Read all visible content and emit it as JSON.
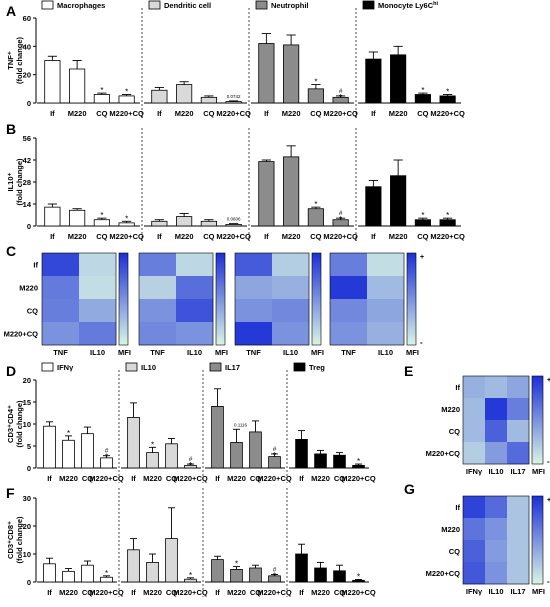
{
  "colors": {
    "white": "#ffffff",
    "light": "#d9d9d9",
    "mid": "#8c8c8c",
    "black": "#000000",
    "heat_low": "#d9f5e6",
    "heat_high": "#1c2fd6"
  },
  "chart_data": [
    {
      "id": "A",
      "type": "bar",
      "panel_label": "A",
      "ylabel": "TNF⁺",
      "ylabel2": "(fold change)",
      "ylim": [
        0,
        60
      ],
      "yticks": [
        0,
        20,
        40,
        60
      ],
      "groups": [
        {
          "legend": "Macrophages",
          "legend_sup": "",
          "fill": "white",
          "categories": [
            "If",
            "M220",
            "CQ",
            "M220+CQ"
          ],
          "values": [
            30,
            24,
            6,
            5
          ],
          "errors": [
            3,
            6,
            1,
            1
          ],
          "marks": [
            "",
            "",
            "*",
            "*"
          ],
          "annotation": ""
        },
        {
          "legend": "Dendritic cell",
          "legend_sup": "",
          "fill": "light",
          "categories": [
            "If",
            "M220",
            "CQ",
            "M220+CQ"
          ],
          "values": [
            9,
            13,
            4,
            1
          ],
          "errors": [
            2,
            2,
            1,
            0.5
          ],
          "marks": [
            "",
            "",
            "",
            ""
          ],
          "annotation": "0.0742"
        },
        {
          "legend": "Neutrophil",
          "legend_sup": "",
          "fill": "mid",
          "categories": [
            "If",
            "M220",
            "CQ",
            "M220+CQ"
          ],
          "values": [
            42,
            41,
            10,
            4
          ],
          "errors": [
            7,
            7,
            3,
            1
          ],
          "marks": [
            "",
            "",
            "*",
            "*#"
          ],
          "annotation": ""
        },
        {
          "legend": "Monocyte Ly6C",
          "legend_sup": "hi",
          "fill": "black",
          "categories": [
            "If",
            "M220",
            "CQ",
            "M220+CQ"
          ],
          "values": [
            31,
            34,
            6,
            5
          ],
          "errors": [
            5,
            6,
            1,
            1
          ],
          "marks": [
            "",
            "",
            "*",
            "*"
          ],
          "annotation": ""
        }
      ]
    },
    {
      "id": "B",
      "type": "bar",
      "panel_label": "B",
      "ylabel": "IL10⁺",
      "ylabel2": "(fold change)",
      "ylim": [
        0,
        56
      ],
      "yticks": [
        0,
        14,
        28,
        42,
        56
      ],
      "groups": [
        {
          "legend": "",
          "legend_sup": "",
          "fill": "white",
          "categories": [
            "If",
            "M220",
            "CQ",
            "M220+CQ"
          ],
          "values": [
            12,
            10,
            4,
            2
          ],
          "errors": [
            2,
            1,
            1,
            1
          ],
          "marks": [
            "",
            "",
            "*",
            "*"
          ],
          "annotation": ""
        },
        {
          "legend": "",
          "legend_sup": "",
          "fill": "light",
          "categories": [
            "If",
            "M220",
            "CQ",
            "M220+CQ"
          ],
          "values": [
            3,
            6,
            3,
            1
          ],
          "errors": [
            1,
            2,
            1,
            0.5
          ],
          "marks": [
            "",
            "",
            "",
            ""
          ],
          "annotation": "0.0606"
        },
        {
          "legend": "",
          "legend_sup": "",
          "fill": "mid",
          "categories": [
            "If",
            "M220",
            "CQ",
            "M220+CQ"
          ],
          "values": [
            41,
            44,
            11,
            4
          ],
          "errors": [
            1,
            7,
            1,
            1
          ],
          "marks": [
            "",
            "",
            "*",
            "*#"
          ],
          "annotation": ""
        },
        {
          "legend": "",
          "legend_sup": "",
          "fill": "black",
          "categories": [
            "If",
            "M220",
            "CQ",
            "M220+CQ"
          ],
          "values": [
            25,
            32,
            4,
            4
          ],
          "errors": [
            4,
            10,
            1,
            1
          ],
          "marks": [
            "",
            "",
            "*",
            "*"
          ],
          "annotation": ""
        }
      ]
    },
    {
      "id": "C",
      "type": "heatmap",
      "panel_label": "C",
      "rows": [
        "If",
        "M220",
        "CQ",
        "M220+CQ"
      ],
      "columns": [
        "TNF",
        "IL10"
      ],
      "scale_label": "MFI",
      "scale_plus": "+",
      "scale_minus": "-",
      "blocks": [
        [
          [
            0.88,
            0.15
          ],
          [
            0.62,
            0.12
          ],
          [
            0.6,
            0.38
          ],
          [
            0.5,
            0.62
          ]
        ],
        [
          [
            0.6,
            0.15
          ],
          [
            0.18,
            0.68
          ],
          [
            0.5,
            0.82
          ],
          [
            0.55,
            0.5
          ]
        ],
        [
          [
            0.78,
            0.2
          ],
          [
            0.4,
            0.35
          ],
          [
            0.5,
            0.55
          ],
          [
            0.95,
            0.5
          ]
        ],
        [
          [
            0.6,
            0.12
          ],
          [
            0.95,
            0.3
          ],
          [
            0.55,
            0.4
          ],
          [
            0.5,
            0.35
          ]
        ]
      ]
    },
    {
      "id": "D",
      "type": "bar",
      "panel_label": "D",
      "ylabel": "CD3⁺CD4⁺",
      "ylabel2": "(fold change)",
      "ylim": [
        0,
        20
      ],
      "yticks": [
        0,
        5,
        10,
        15,
        20
      ],
      "groups": [
        {
          "legend": "IFNγ",
          "legend_sup": "",
          "fill": "white",
          "categories": [
            "If",
            "M220",
            "CQ",
            "M220+CQ"
          ],
          "values": [
            9.5,
            6.3,
            7.8,
            2.3
          ],
          "errors": [
            1,
            1,
            1.5,
            0.5
          ],
          "marks": [
            "",
            "*",
            "",
            "*#"
          ],
          "annotation": ""
        },
        {
          "legend": "IL10",
          "legend_sup": "",
          "fill": "light",
          "categories": [
            "If",
            "M220",
            "CQ",
            "M220+CQ"
          ],
          "values": [
            11.5,
            3.5,
            5.5,
            0.6
          ],
          "errors": [
            3.3,
            1.2,
            1.2,
            0.3
          ],
          "marks": [
            "",
            "*",
            "",
            "*#"
          ],
          "annotation": ""
        },
        {
          "legend": "IL17",
          "legend_sup": "",
          "fill": "mid",
          "categories": [
            "If",
            "M220",
            "CQ",
            "M220+CQ"
          ],
          "values": [
            14,
            5.8,
            8.2,
            2.6
          ],
          "errors": [
            4,
            3,
            2.5,
            0.6
          ],
          "marks": [
            "",
            "",
            "",
            "*#"
          ],
          "annotation": "0.1116"
        },
        {
          "legend": "Treg",
          "legend_sup": "",
          "fill": "black",
          "categories": [
            "If",
            "M220",
            "CQ",
            "M220+CQ"
          ],
          "values": [
            6.5,
            3.2,
            2.9,
            0.6
          ],
          "errors": [
            2,
            0.8,
            0.6,
            0.3
          ],
          "marks": [
            "",
            "",
            "",
            "*"
          ],
          "annotation": ""
        }
      ]
    },
    {
      "id": "E",
      "type": "heatmap",
      "panel_label": "E",
      "rows": [
        "If",
        "M220",
        "CQ",
        "M220+CQ"
      ],
      "columns": [
        "IFNγ",
        "IL10",
        "IL17"
      ],
      "scale_label": "MFI",
      "scale_plus": "+",
      "scale_minus": "-",
      "blocks": [
        [
          [
            0.35,
            0.3,
            0.4
          ],
          [
            0.3,
            0.95,
            0.6
          ],
          [
            0.3,
            0.75,
            0.3
          ],
          [
            0.2,
            0.45,
            0.7
          ]
        ]
      ]
    },
    {
      "id": "F",
      "type": "bar",
      "panel_label": "F",
      "ylabel": "CD3⁺CD8⁺",
      "ylabel2": "(fold change)",
      "ylim": [
        0,
        30
      ],
      "yticks": [
        0,
        10,
        20,
        30
      ],
      "groups": [
        {
          "legend": "",
          "legend_sup": "",
          "fill": "white",
          "categories": [
            "If",
            "M220",
            "CQ",
            "M220+CQ"
          ],
          "values": [
            6.5,
            3.8,
            6,
            1.7
          ],
          "errors": [
            2,
            1,
            1.5,
            0.5
          ],
          "marks": [
            "",
            "",
            "",
            "*"
          ],
          "annotation": ""
        },
        {
          "legend": "",
          "legend_sup": "",
          "fill": "light",
          "categories": [
            "If",
            "M220",
            "CQ",
            "M220+CQ"
          ],
          "values": [
            11.5,
            7,
            15.5,
            1
          ],
          "errors": [
            4,
            3,
            11,
            0.5
          ],
          "marks": [
            "",
            "",
            "",
            "*"
          ],
          "annotation": ""
        },
        {
          "legend": "",
          "legend_sup": "",
          "fill": "mid",
          "categories": [
            "If",
            "M220",
            "CQ",
            "M220+CQ"
          ],
          "values": [
            8,
            4.5,
            5,
            2.2
          ],
          "errors": [
            1.2,
            1,
            1,
            0.5
          ],
          "marks": [
            "",
            "*",
            "",
            "*#"
          ],
          "annotation": ""
        },
        {
          "legend": "",
          "legend_sup": "",
          "fill": "black",
          "categories": [
            "If",
            "M220",
            "CQ",
            "M220+CQ"
          ],
          "values": [
            10,
            5,
            4,
            0.6
          ],
          "errors": [
            3.5,
            2,
            2,
            0.3
          ],
          "marks": [
            "",
            "",
            "",
            "*"
          ],
          "annotation": ""
        }
      ]
    },
    {
      "id": "G",
      "type": "heatmap",
      "panel_label": "G",
      "rows": [
        "If",
        "M220",
        "CQ",
        "M220+CQ"
      ],
      "columns": [
        "IFNγ",
        "IL10",
        "IL17"
      ],
      "scale_label": "MFI",
      "scale_plus": "+",
      "scale_minus": "-",
      "blocks": [
        [
          [
            0.9,
            0.7,
            0.25
          ],
          [
            0.65,
            0.5,
            0.25
          ],
          [
            0.75,
            0.45,
            0.25
          ],
          [
            0.8,
            0.5,
            0.25
          ]
        ]
      ]
    }
  ]
}
